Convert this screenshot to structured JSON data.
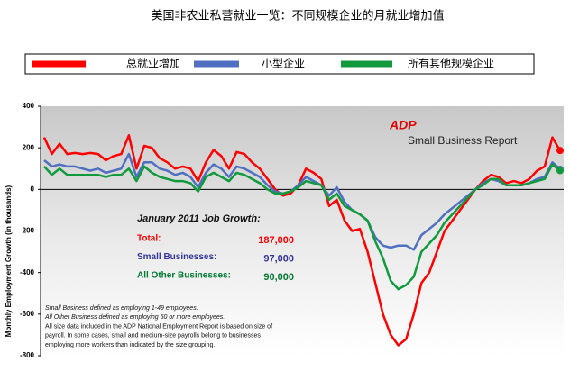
{
  "chart_data": {
    "type": "line",
    "title": "美国非农业私营就业一览：不同规模企业的月就业增加值",
    "y_label": "Monthly Employment Growth (in thousands)",
    "logo": "ADP",
    "logo_subtitle": "Small Business Report",
    "annotation_title": "January 2011 Job Growth:",
    "annotations": [
      {
        "label": "Total:",
        "value": "187,000",
        "color": "#ff0000"
      },
      {
        "label": "Small Businesses:",
        "value": "97,000",
        "color": "#333399"
      },
      {
        "label": "All Other Businesses:",
        "value": "90,000",
        "color": "#007a33"
      }
    ],
    "footnotes": [
      "Small Business defined as employing 1-49 employees.",
      "All Other Business defined as employing 50 or more employees.",
      "All size data included in the ADP National Employment Report is based on size of",
      "payroll.  In some cases, small and medium-size payrolls belong to businesses",
      "employing more workers than indicated by the size grouping."
    ],
    "ylim": [
      -800,
      400
    ],
    "yticks": [
      400,
      200,
      0,
      {
        "value": -200,
        "label": "200"
      },
      -400,
      -600,
      -800
    ],
    "series": [
      {
        "name": "总就业增加",
        "color": "#ff0000",
        "values": [
          250,
          170,
          220,
          170,
          175,
          170,
          175,
          170,
          140,
          160,
          170,
          260,
          100,
          210,
          200,
          150,
          130,
          100,
          110,
          100,
          40,
          130,
          190,
          160,
          100,
          180,
          170,
          130,
          100,
          50,
          0,
          -30,
          -20,
          20,
          100,
          80,
          50,
          -80,
          -50,
          -150,
          -200,
          -190,
          -300,
          -450,
          -600,
          -700,
          -750,
          -720,
          -600,
          -450,
          -400,
          -300,
          -200,
          -150,
          -100,
          -50,
          0,
          40,
          70,
          60,
          30,
          40,
          30,
          50,
          90,
          110,
          250,
          187
        ]
      },
      {
        "name": "小型企业",
        "color": "#4f6fc0",
        "values": [
          140,
          110,
          120,
          110,
          110,
          100,
          90,
          100,
          80,
          90,
          100,
          170,
          60,
          130,
          130,
          100,
          90,
          70,
          80,
          60,
          10,
          80,
          120,
          100,
          60,
          110,
          100,
          80,
          60,
          20,
          -10,
          -20,
          -10,
          20,
          60,
          40,
          20,
          -30,
          10,
          -60,
          -100,
          -120,
          -150,
          -230,
          -270,
          -280,
          -270,
          -270,
          -290,
          -220,
          -190,
          -160,
          -120,
          -90,
          -60,
          -30,
          0,
          30,
          50,
          40,
          20,
          20,
          20,
          30,
          50,
          60,
          130,
          97
        ]
      },
      {
        "name": "所有其他规模企业",
        "color": "#109a3c",
        "values": [
          110,
          70,
          100,
          70,
          70,
          70,
          70,
          70,
          60,
          70,
          70,
          100,
          40,
          110,
          80,
          60,
          50,
          40,
          40,
          30,
          -10,
          60,
          80,
          60,
          40,
          80,
          70,
          50,
          30,
          0,
          -20,
          -20,
          -10,
          10,
          40,
          30,
          20,
          -50,
          -20,
          -80,
          -100,
          -120,
          -150,
          -250,
          -330,
          -440,
          -480,
          -460,
          -420,
          -300,
          -260,
          -220,
          -160,
          -120,
          -80,
          -40,
          0,
          20,
          50,
          50,
          20,
          20,
          20,
          30,
          40,
          50,
          120,
          90
        ]
      }
    ]
  }
}
